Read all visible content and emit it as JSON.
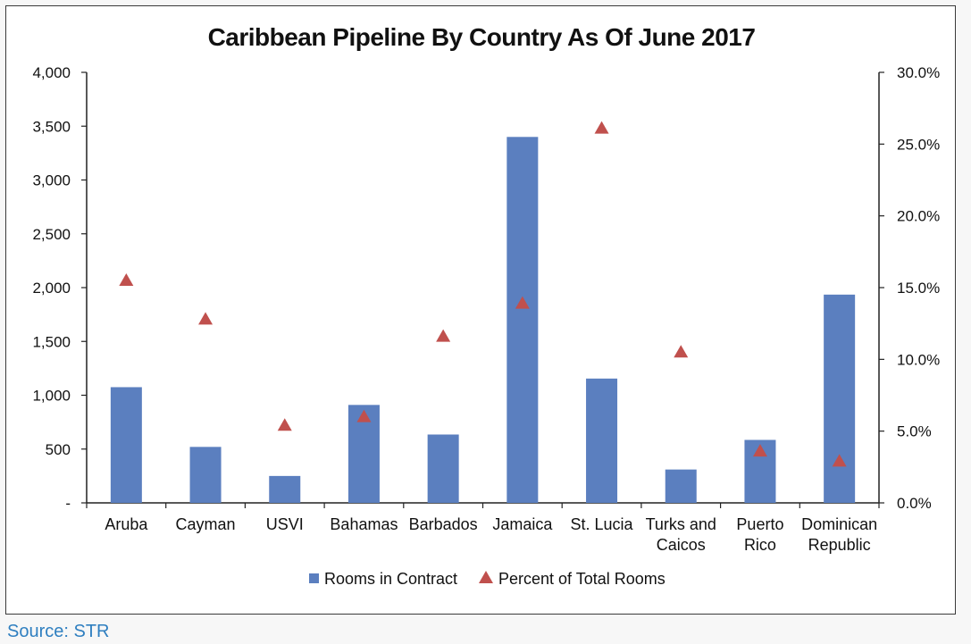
{
  "source": "Source: STR",
  "colors": {
    "bar": "#5b7fbf",
    "marker": "#c0504d",
    "axis": "#222222",
    "source": "#2f7fc0"
  },
  "chart_data": {
    "type": "bar",
    "title": "Caribbean Pipeline By Country As Of June 2017",
    "categories": [
      [
        "Aruba"
      ],
      [
        "Cayman"
      ],
      [
        "USVI"
      ],
      [
        "Bahamas"
      ],
      [
        "Barbados"
      ],
      [
        "Jamaica"
      ],
      [
        "St. Lucia"
      ],
      [
        "Turks and",
        "Caicos"
      ],
      [
        "Puerto",
        "Rico"
      ],
      [
        "Dominican",
        "Republic"
      ]
    ],
    "series": [
      {
        "name": "Rooms in Contract",
        "type": "bar",
        "axis": "left",
        "values": [
          1075,
          520,
          250,
          910,
          635,
          3400,
          1155,
          310,
          585,
          1935
        ]
      },
      {
        "name": "Percent of Total Rooms",
        "type": "scatter",
        "marker": "triangle",
        "axis": "right",
        "values": [
          15.5,
          12.8,
          5.4,
          6.0,
          11.6,
          13.9,
          26.1,
          10.5,
          3.6,
          2.9
        ]
      }
    ],
    "y_left": {
      "ylim": [
        0,
        4000
      ],
      "ticks": [
        0,
        500,
        1000,
        1500,
        2000,
        2500,
        3000,
        3500,
        4000
      ],
      "tick_labels": [
        "-",
        "500",
        "1,000",
        "1,500",
        "2,000",
        "2,500",
        "3,000",
        "3,500",
        "4,000"
      ]
    },
    "y_right": {
      "ylim": [
        0,
        30
      ],
      "ticks": [
        0,
        5,
        10,
        15,
        20,
        25,
        30
      ],
      "tick_labels": [
        "0.0%",
        "5.0%",
        "10.0%",
        "15.0%",
        "20.0%",
        "25.0%",
        "30.0%"
      ]
    },
    "grid": false,
    "legend_position": "bottom-center"
  }
}
